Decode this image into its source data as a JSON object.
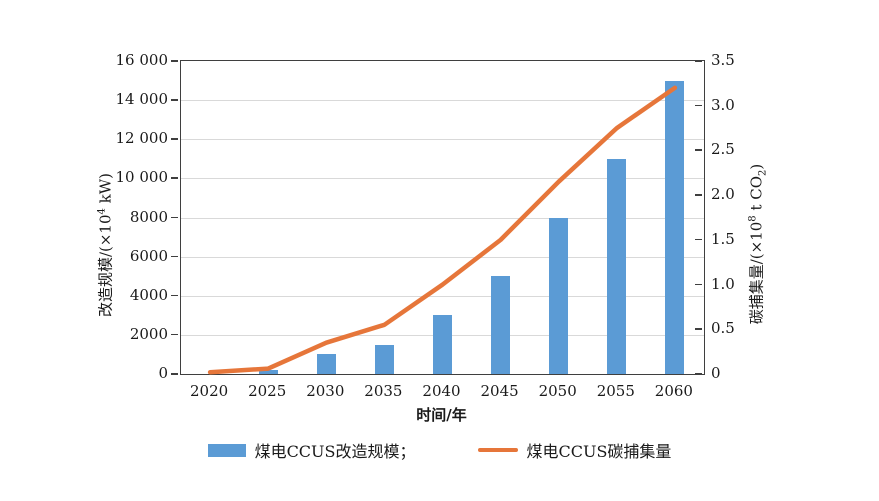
{
  "chart_data": {
    "type": "combo-bar-line",
    "title": "",
    "xlabel": "时间/年",
    "categories": [
      "2020",
      "2025",
      "2030",
      "2035",
      "2040",
      "2045",
      "2050",
      "2055",
      "2060"
    ],
    "series": [
      {
        "name": "煤电CCUS改造规模",
        "type": "bar",
        "axis": "left",
        "color": "#5b9bd5",
        "values": [
          0,
          200,
          1000,
          1500,
          3000,
          5000,
          8000,
          11000,
          15000
        ]
      },
      {
        "name": "煤电CCUS碳捕集量",
        "type": "line",
        "axis": "right",
        "color": "#e6763a",
        "values": [
          0.02,
          0.06,
          0.35,
          0.55,
          1.0,
          1.5,
          2.15,
          2.75,
          3.2
        ]
      }
    ],
    "left_axis": {
      "title_prefix": "改造规模/(×10",
      "title_sup": "4",
      "title_suffix": " kW)",
      "min": 0,
      "max": 16000,
      "step": 2000,
      "tick_labels": [
        "0",
        "2000",
        "4000",
        "6000",
        "8000",
        "10 000",
        "12 000",
        "14 000",
        "16 000"
      ]
    },
    "right_axis": {
      "title_prefix": "碳捕集量/(×10",
      "title_sup": "8",
      "title_mid": " t CO",
      "title_sub": "2",
      "title_suffix": ")",
      "min": 0,
      "max": 3.5,
      "step": 0.5,
      "tick_labels": [
        "0",
        "0.5",
        "1.0",
        "1.5",
        "2.0",
        "2.5",
        "3.0",
        "3.5"
      ]
    },
    "grid": "horizontal gridlines at each left-axis step",
    "legend_position": "bottom",
    "legend": [
      {
        "label": "煤电CCUS改造规模；",
        "swatch": "bar"
      },
      {
        "label": "煤电CCUS碳捕集量",
        "swatch": "line"
      }
    ],
    "colors": {
      "bar": "#5b9bd5",
      "line": "#e6763a",
      "gridline": "#d9d9d9",
      "axis": "#3f3f3f",
      "background": "#ffffff"
    }
  }
}
